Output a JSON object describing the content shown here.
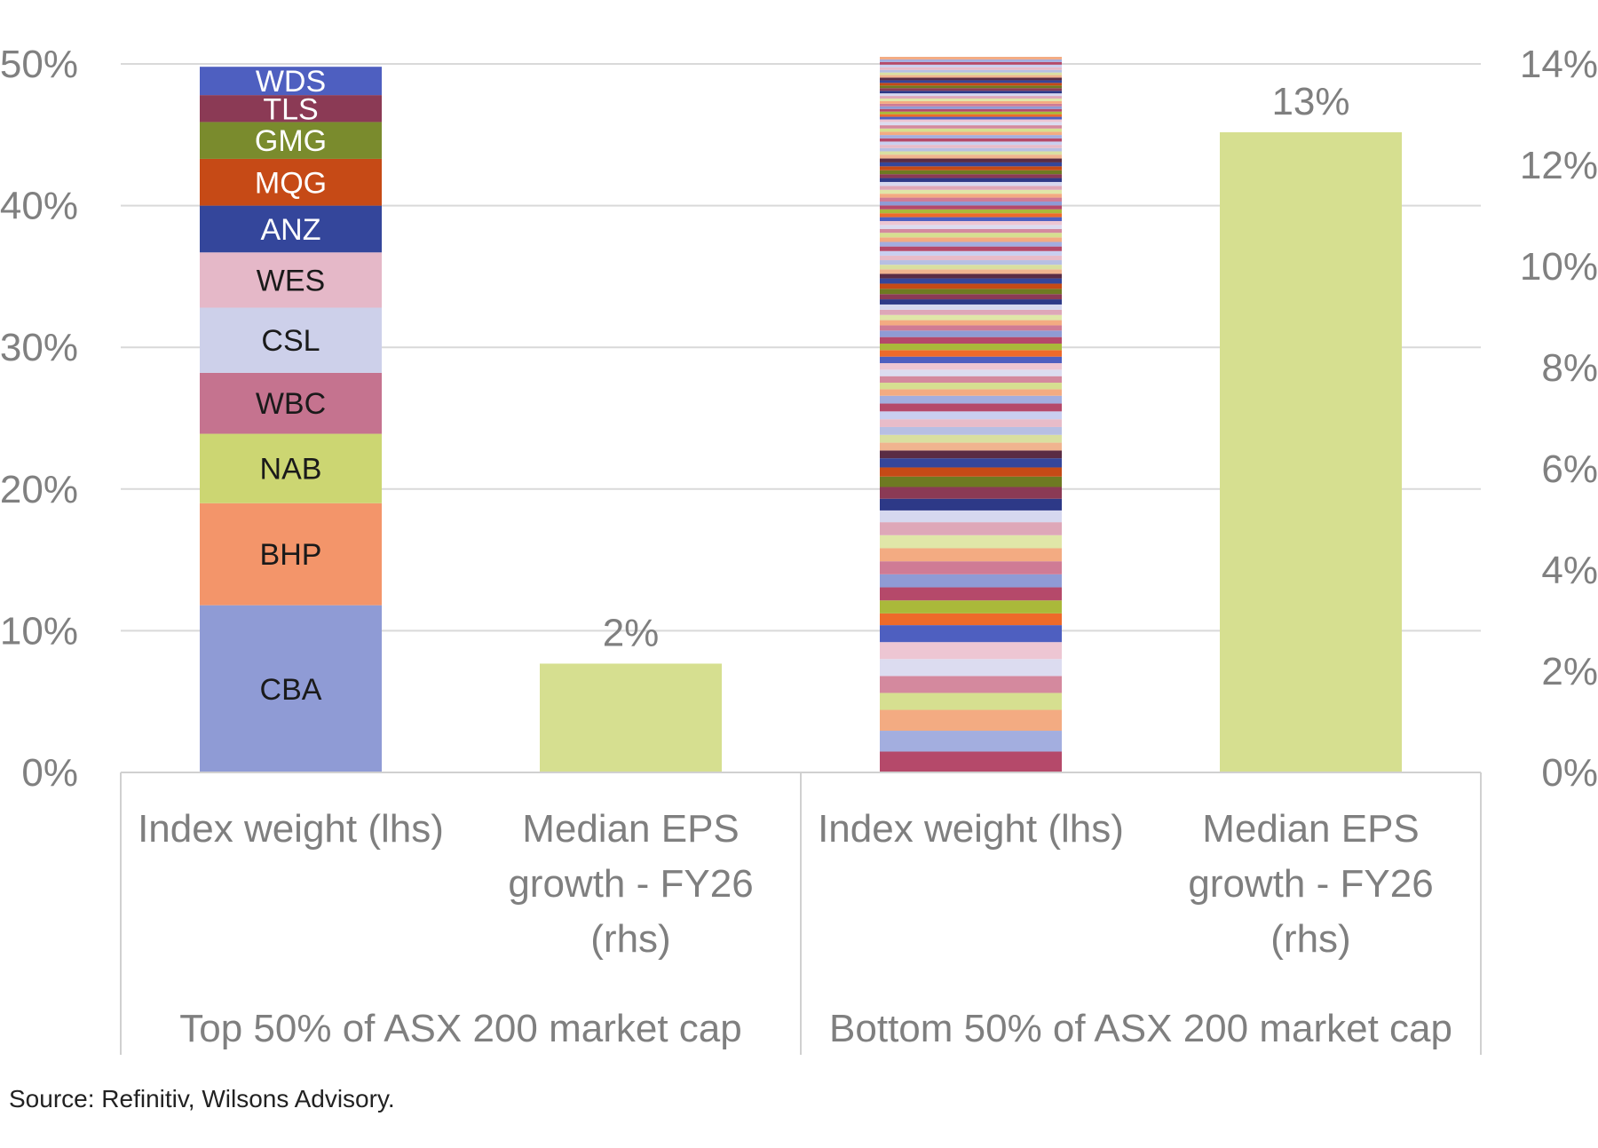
{
  "source_note": "Source: Refinitiv, Wilsons Advisory.",
  "chart_data": {
    "type": "bar",
    "stacked": true,
    "dual_axis": true,
    "y_left": {
      "lim": [
        0,
        50
      ],
      "ticks": [
        "0%",
        "10%",
        "20%",
        "30%",
        "40%",
        "50%"
      ]
    },
    "y_right": {
      "lim": [
        0,
        14
      ],
      "ticks": [
        "0%",
        "2%",
        "4%",
        "6%",
        "8%",
        "10%",
        "12%",
        "14%"
      ]
    },
    "grid": true,
    "groups": [
      {
        "label": "Top 50% of ASX 200 market cap",
        "bars": [
          {
            "category": "Index weight (lhs)",
            "axis": "left",
            "segments": [
              {
                "name": "CBA",
                "value": 11.8,
                "color": "#8f9bd5",
                "text_color": "#1a1a1a"
              },
              {
                "name": "BHP",
                "value": 7.2,
                "color": "#f3956a",
                "text_color": "#1a1a1a"
              },
              {
                "name": "NAB",
                "value": 4.9,
                "color": "#ccd672",
                "text_color": "#1a1a1a"
              },
              {
                "name": "WBC",
                "value": 4.3,
                "color": "#c5738f",
                "text_color": "#1a1a1a"
              },
              {
                "name": "CSL",
                "value": 4.6,
                "color": "#cdd0ea",
                "text_color": "#1a1a1a"
              },
              {
                "name": "WES",
                "value": 3.9,
                "color": "#e5b8c8",
                "text_color": "#1a1a1a"
              },
              {
                "name": "ANZ",
                "value": 3.3,
                "color": "#34469b",
                "text_color": "#ffffff"
              },
              {
                "name": "MQG",
                "value": 3.3,
                "color": "#c64a16",
                "text_color": "#ffffff"
              },
              {
                "name": "GMG",
                "value": 2.6,
                "color": "#7a8b2d",
                "text_color": "#ffffff"
              },
              {
                "name": "TLS",
                "value": 1.9,
                "color": "#8b3a55",
                "text_color": "#ffffff"
              },
              {
                "name": "WDS",
                "value": 2.0,
                "color": "#4e5fc0",
                "text_color": "#ffffff"
              }
            ]
          },
          {
            "category": "Median EPS growth - FY26 (rhs)",
            "category_lines": [
              "Median EPS",
              "growth - FY26",
              "(rhs)"
            ],
            "axis": "right",
            "value": 2.15,
            "value_label": "2%",
            "color": "#d6df90"
          }
        ]
      },
      {
        "label": "Bottom 50% of ASX 200 market cap",
        "bars": [
          {
            "category": "Index weight (lhs)",
            "axis": "left",
            "total": 50.5,
            "segment_values_pct": [
              1.6,
              1.6,
              1.6,
              1.3,
              1.3,
              1.3,
              1.3,
              1.3,
              0.9,
              1.0,
              1.0,
              1.0,
              1.0,
              1.0,
              1.0,
              1.0,
              0.9,
              0.9,
              0.9,
              0.8,
              0.7,
              0.7,
              0.6,
              0.6,
              0.6,
              0.6,
              0.6,
              0.6,
              0.6,
              0.6,
              0.5,
              0.5,
              0.5,
              0.5,
              0.5,
              0.5,
              0.5,
              0.5,
              0.5,
              0.5,
              0.4,
              0.4,
              0.4,
              0.4,
              0.4,
              0.4,
              0.4,
              0.4,
              0.4,
              0.4,
              0.35,
              0.35,
              0.35,
              0.35,
              0.35,
              0.35,
              0.35,
              0.35,
              0.35,
              0.35,
              0.3,
              0.3,
              0.3,
              0.3,
              0.3,
              0.3,
              0.3,
              0.3,
              0.3,
              0.3,
              0.3,
              0.3,
              0.3,
              0.3,
              0.3,
              0.3,
              0.3,
              0.3,
              0.3,
              0.3,
              0.25,
              0.25,
              0.25,
              0.25,
              0.25,
              0.25,
              0.25,
              0.25,
              0.25,
              0.25,
              0.2,
              0.2,
              0.2,
              0.2,
              0.2,
              0.2,
              0.2,
              0.2,
              0.2,
              0.2,
              0.2,
              0.2,
              0.2,
              0.2,
              0.2,
              0.2,
              0.2,
              0.2,
              0.2,
              0.2,
              0.2,
              0.2,
              0.2,
              0.2,
              0.2
            ],
            "palette": [
              "#b5496a",
              "#a3aedf",
              "#f3ab82",
              "#d6df90",
              "#d4899e",
              "#dcdcf0",
              "#edc6d3",
              "#4e5fc0",
              "#ee6a2a",
              "#aab93a",
              "#b5496a",
              "#8f9bd5",
              "#cf7b95",
              "#f3ab82",
              "#e0e6a8",
              "#dea7b8",
              "#d6d8ef",
              "#2d3987",
              "#8b3a55",
              "#6e7a22",
              "#c64a16",
              "#34469b",
              "#5a2c44",
              "#f0b48f",
              "#d9dfa0",
              "#b7bfe3",
              "#e8bcc9",
              "#c9cff0"
            ]
          },
          {
            "category": "Median EPS growth - FY26 (rhs)",
            "category_lines": [
              "Median EPS",
              "growth - FY26",
              "(rhs)"
            ],
            "axis": "right",
            "value": 12.65,
            "value_label": "13%",
            "color": "#d6df90"
          }
        ]
      }
    ]
  }
}
